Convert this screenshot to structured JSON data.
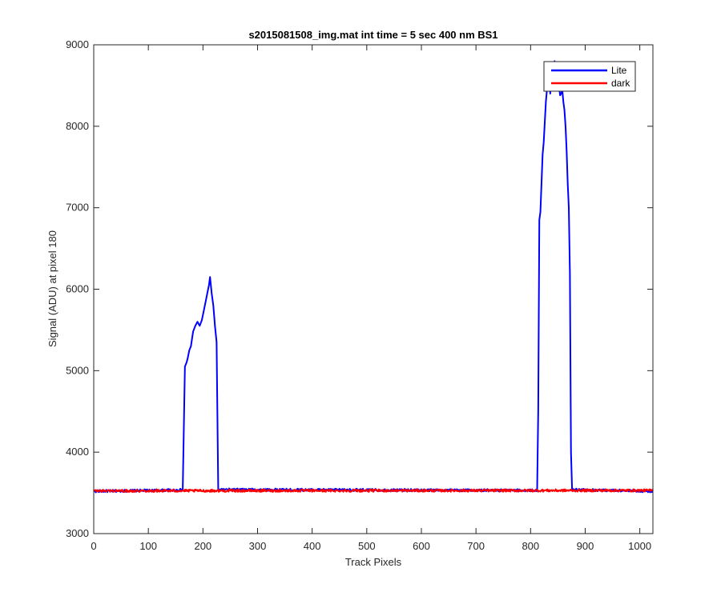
{
  "chart_data": {
    "type": "line",
    "title": "s2015081508_img.mat int time = 5 sec  400 nm BS1",
    "xlabel": "Track Pixels",
    "ylabel": "Signal (ADU) at pixel 180",
    "xlim": [
      0,
      1024
    ],
    "ylim": [
      3000,
      9000
    ],
    "xticks": [
      0,
      100,
      200,
      300,
      400,
      500,
      600,
      700,
      800,
      900,
      1000
    ],
    "yticks": [
      3000,
      4000,
      5000,
      6000,
      7000,
      8000,
      9000
    ],
    "grid": false,
    "legend_position": "top-right",
    "series": [
      {
        "name": "Lite",
        "color": "#0000ff",
        "baseline": 3530,
        "points": [
          [
            0,
            3520
          ],
          [
            160,
            3535
          ],
          [
            163,
            3540
          ],
          [
            165,
            4300
          ],
          [
            167,
            5050
          ],
          [
            170,
            5100
          ],
          [
            172,
            5150
          ],
          [
            175,
            5250
          ],
          [
            178,
            5300
          ],
          [
            182,
            5480
          ],
          [
            186,
            5550
          ],
          [
            190,
            5600
          ],
          [
            194,
            5550
          ],
          [
            198,
            5620
          ],
          [
            202,
            5750
          ],
          [
            205,
            5850
          ],
          [
            208,
            5950
          ],
          [
            211,
            6050
          ],
          [
            213,
            6150
          ],
          [
            216,
            5950
          ],
          [
            219,
            5800
          ],
          [
            222,
            5550
          ],
          [
            225,
            5350
          ],
          [
            228,
            3540
          ],
          [
            812,
            3530
          ],
          [
            814,
            4500
          ],
          [
            816,
            6850
          ],
          [
            818,
            6950
          ],
          [
            820,
            7300
          ],
          [
            822,
            7650
          ],
          [
            824,
            7800
          ],
          [
            826,
            8050
          ],
          [
            828,
            8300
          ],
          [
            830,
            8450
          ],
          [
            832,
            8550
          ],
          [
            834,
            8600
          ],
          [
            836,
            8400
          ],
          [
            838,
            8700
          ],
          [
            840,
            8450
          ],
          [
            842,
            8500
          ],
          [
            844,
            8800
          ],
          [
            846,
            8750
          ],
          [
            848,
            8480
          ],
          [
            850,
            8620
          ],
          [
            852,
            8500
          ],
          [
            854,
            8380
          ],
          [
            856,
            8400
          ],
          [
            858,
            8450
          ],
          [
            860,
            8300
          ],
          [
            862,
            8200
          ],
          [
            864,
            8000
          ],
          [
            866,
            7700
          ],
          [
            868,
            7300
          ],
          [
            870,
            7000
          ],
          [
            872,
            6200
          ],
          [
            874,
            4000
          ],
          [
            876,
            3540
          ],
          [
            1024,
            3520
          ]
        ]
      },
      {
        "name": "dark",
        "color": "#ff0000",
        "baseline": 3535,
        "points": [
          [
            0,
            3525
          ],
          [
            1024,
            3530
          ]
        ]
      }
    ]
  }
}
